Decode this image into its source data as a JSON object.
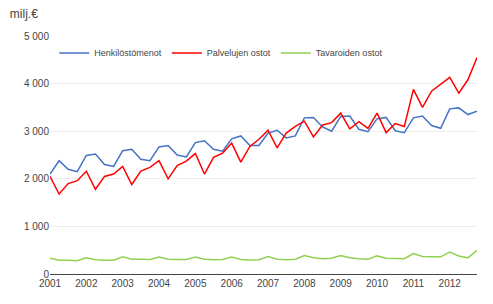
{
  "chart_data": {
    "type": "line",
    "title": "milj.€",
    "x": [
      2001,
      2001.25,
      2001.5,
      2001.75,
      2002,
      2002.25,
      2002.5,
      2002.75,
      2003,
      2003.25,
      2003.5,
      2003.75,
      2004,
      2004.25,
      2004.5,
      2004.75,
      2005,
      2005.25,
      2005.5,
      2005.75,
      2006,
      2006.25,
      2006.5,
      2006.75,
      2007,
      2007.25,
      2007.5,
      2007.75,
      2008,
      2008.25,
      2008.5,
      2008.75,
      2009,
      2009.25,
      2009.5,
      2009.75,
      2010,
      2010.25,
      2010.5,
      2010.75,
      2011,
      2011.25,
      2011.5,
      2011.75,
      2012,
      2012.25,
      2012.5,
      2012.75
    ],
    "series": [
      {
        "name": "Henkilöstömenot",
        "color": "#4472C4",
        "values": [
          2100,
          2380,
          2200,
          2150,
          2490,
          2520,
          2300,
          2260,
          2590,
          2620,
          2410,
          2380,
          2670,
          2700,
          2500,
          2460,
          2760,
          2800,
          2620,
          2580,
          2840,
          2900,
          2700,
          2700,
          2960,
          3020,
          2860,
          2900,
          3280,
          3290,
          3090,
          3000,
          3310,
          3320,
          3040,
          2990,
          3260,
          3290,
          3010,
          2970,
          3280,
          3320,
          3120,
          3060,
          3470,
          3490,
          3350,
          3420
        ]
      },
      {
        "name": "Palvelujen ostot",
        "color": "#FF0000",
        "values": [
          2050,
          1680,
          1900,
          1960,
          2160,
          1780,
          2050,
          2100,
          2260,
          1880,
          2160,
          2240,
          2380,
          2000,
          2280,
          2370,
          2530,
          2100,
          2450,
          2540,
          2750,
          2350,
          2680,
          2830,
          3020,
          2650,
          2960,
          3100,
          3210,
          2880,
          3130,
          3180,
          3380,
          3050,
          3200,
          3060,
          3380,
          2970,
          3160,
          3100,
          3880,
          3500,
          3840,
          3980,
          4130,
          3800,
          4080,
          4550
        ]
      },
      {
        "name": "Tavaroiden ostot",
        "color": "#92D050",
        "values": [
          330,
          290,
          290,
          280,
          340,
          300,
          290,
          290,
          360,
          310,
          310,
          305,
          355,
          310,
          305,
          305,
          355,
          310,
          300,
          305,
          355,
          305,
          295,
          300,
          365,
          310,
          300,
          310,
          390,
          340,
          320,
          330,
          390,
          340,
          320,
          310,
          380,
          330,
          325,
          320,
          430,
          370,
          360,
          360,
          460,
          380,
          340,
          500
        ]
      }
    ],
    "xlim": [
      2001,
      2012.75
    ],
    "xticks": [
      2001,
      2002,
      2003,
      2004,
      2005,
      2006,
      2007,
      2008,
      2009,
      2010,
      2011,
      2012
    ],
    "ylim": [
      0,
      5000
    ],
    "yticks": [
      0,
      {
        "value": 1000,
        "label": "1 000"
      },
      {
        "value": 2000,
        "label": "2 000"
      },
      {
        "value": 3000,
        "label": "3 000"
      },
      {
        "value": 4000,
        "label": "4 000"
      },
      {
        "value": 5000,
        "label": "5 000"
      }
    ],
    "grid": true,
    "legend": "upper left"
  }
}
